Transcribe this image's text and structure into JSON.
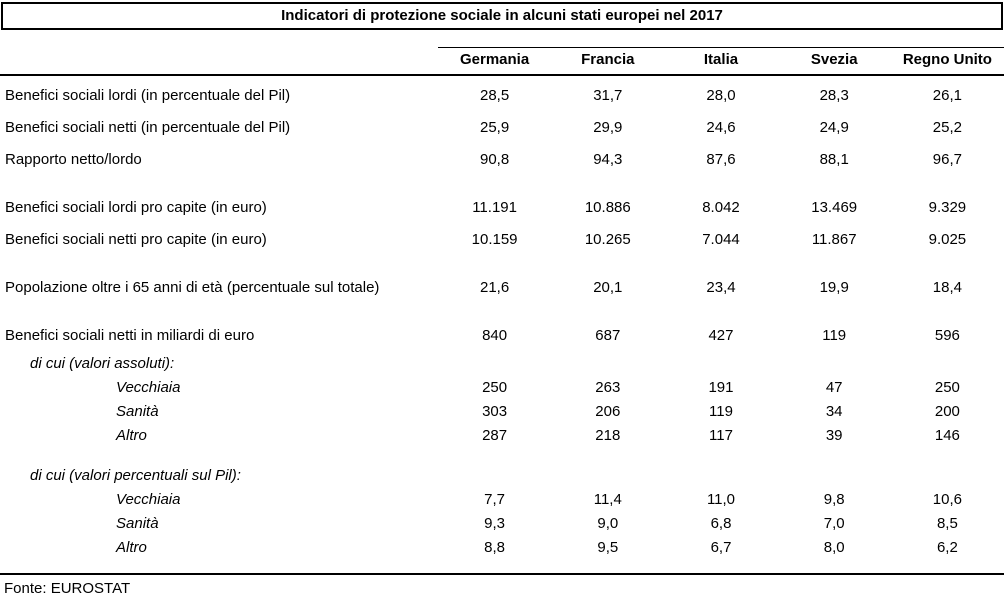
{
  "title": "Indicatori di protezione sociale in alcuni stati europei nel 2017",
  "chart_data": {
    "type": "table",
    "title": "Indicatori di protezione sociale in alcuni stati europei nel 2017",
    "columns": [
      "Germania",
      "Francia",
      "Italia",
      "Svezia",
      "Regno Unito"
    ],
    "rows": [
      {
        "label": "Benefici sociali lordi (in percentuale del Pil)",
        "indent": 0,
        "italic": false,
        "gap_before": false,
        "values": [
          "28,5",
          "31,7",
          "28,0",
          "28,3",
          "26,1"
        ]
      },
      {
        "label": "Benefici sociali netti (in percentuale del Pil)",
        "indent": 0,
        "italic": false,
        "gap_before": false,
        "values": [
          "25,9",
          "29,9",
          "24,6",
          "24,9",
          "25,2"
        ]
      },
      {
        "label": "Rapporto netto/lordo",
        "indent": 0,
        "italic": false,
        "gap_before": false,
        "values": [
          "90,8",
          "94,3",
          "87,6",
          "88,1",
          "96,7"
        ]
      },
      {
        "label": "Benefici sociali lordi pro capite (in euro)",
        "indent": 0,
        "italic": false,
        "gap_before": true,
        "values": [
          "11.191",
          "10.886",
          "8.042",
          "13.469",
          "9.329"
        ]
      },
      {
        "label": "Benefici sociali netti pro capite (in euro)",
        "indent": 0,
        "italic": false,
        "gap_before": false,
        "values": [
          "10.159",
          "10.265",
          "7.044",
          "11.867",
          "9.025"
        ]
      },
      {
        "label": "Popolazione oltre i 65 anni di età (percentuale sul totale)",
        "indent": 0,
        "italic": false,
        "gap_before": true,
        "values": [
          "21,6",
          "20,1",
          "23,4",
          "19,9",
          "18,4"
        ]
      },
      {
        "label": "Benefici sociali netti in miliardi di euro",
        "indent": 0,
        "italic": false,
        "gap_before": true,
        "values": [
          "840",
          "687",
          "427",
          "119",
          "596"
        ]
      },
      {
        "label": "di cui (valori assoluti):",
        "indent": 1,
        "italic": true,
        "gap_before": false,
        "values": [
          "",
          "",
          "",
          "",
          ""
        ]
      },
      {
        "label": "Vecchiaia",
        "indent": 2,
        "italic": true,
        "gap_before": false,
        "values": [
          "250",
          "263",
          "191",
          "47",
          "250"
        ]
      },
      {
        "label": "Sanità",
        "indent": 2,
        "italic": true,
        "gap_before": false,
        "values": [
          "303",
          "206",
          "119",
          "34",
          "200"
        ]
      },
      {
        "label": "Altro",
        "indent": 2,
        "italic": true,
        "gap_before": false,
        "values": [
          "287",
          "218",
          "117",
          "39",
          "146"
        ]
      },
      {
        "label": "di cui (valori percentuali sul Pil):",
        "indent": 1,
        "italic": true,
        "gap_before": true,
        "values": [
          "",
          "",
          "",
          "",
          ""
        ]
      },
      {
        "label": "Vecchiaia",
        "indent": 2,
        "italic": true,
        "gap_before": false,
        "values": [
          "7,7",
          "11,4",
          "11,0",
          "9,8",
          "10,6"
        ]
      },
      {
        "label": "Sanità",
        "indent": 2,
        "italic": true,
        "gap_before": false,
        "values": [
          "9,3",
          "9,0",
          "6,8",
          "7,0",
          "8,5"
        ]
      },
      {
        "label": "Altro",
        "indent": 2,
        "italic": true,
        "gap_before": false,
        "values": [
          "8,8",
          "9,5",
          "6,7",
          "8,0",
          "6,2"
        ]
      }
    ],
    "layout": {
      "grid": "off",
      "value_alignment": "center",
      "decimal_separator": ",",
      "thousands_separator": "."
    },
    "colors": {
      "text": "#000000",
      "rule": "#000000",
      "background": "#ffffff"
    }
  },
  "footer": {
    "source": "Fonte: EUROSTAT"
  }
}
